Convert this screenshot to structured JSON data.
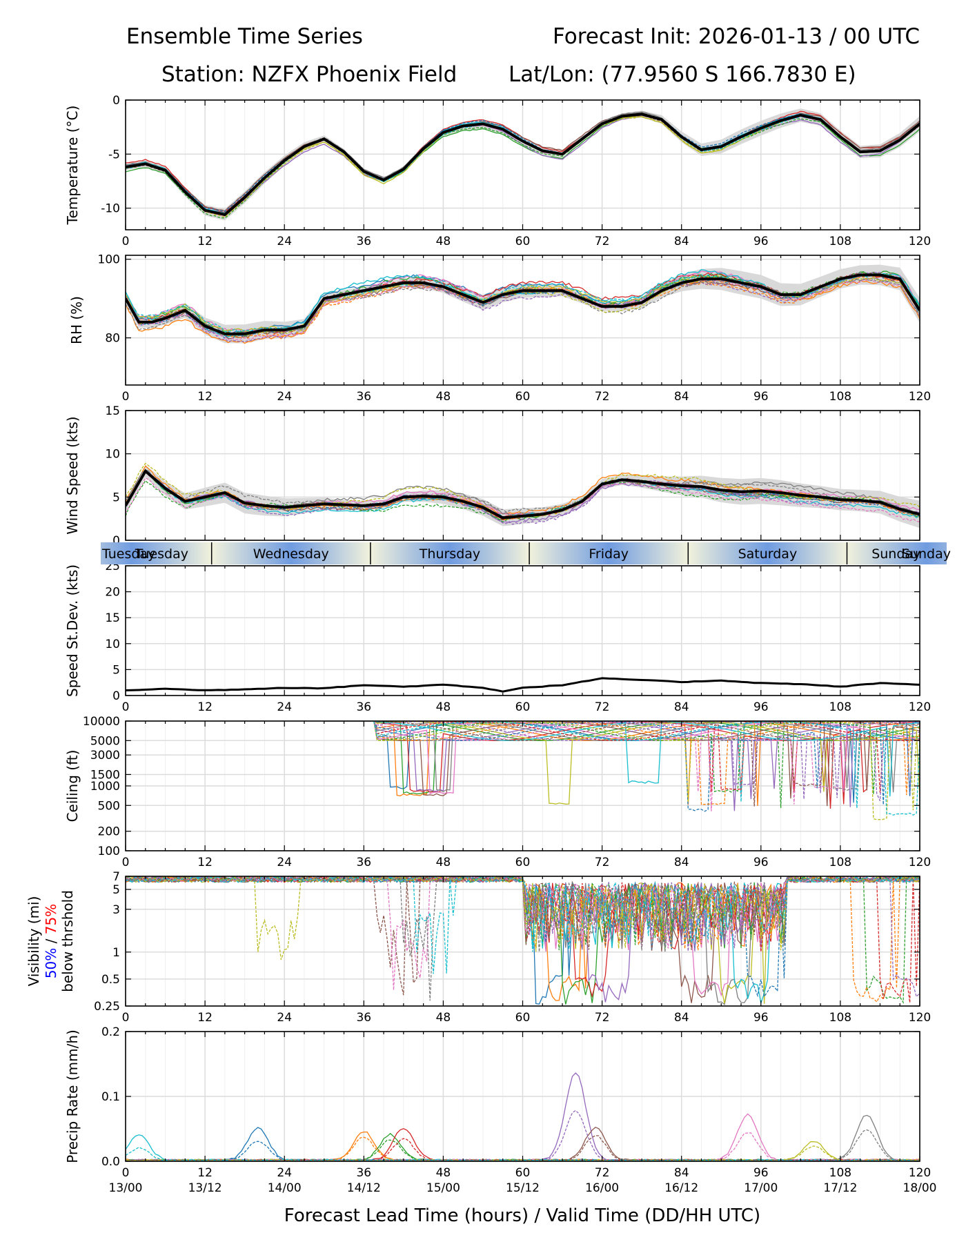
{
  "header": {
    "title_left": "Ensemble Time Series",
    "title_right": "Forecast Init: 2026-01-13 / 00 UTC",
    "station": "Station: NZFX Phoenix Field",
    "latlon": "Lat/Lon: (77.9560 S 166.7830 E)"
  },
  "xaxis_label": "Forecast Lead Time (hours) / Valid Time (DD/HH UTC)",
  "colors": {
    "members": [
      "#1f77b4",
      "#ff7f0e",
      "#2ca02c",
      "#d62728",
      "#9467bd",
      "#8c564b",
      "#e377c2",
      "#7f7f7f",
      "#bcbd22",
      "#17becf"
    ],
    "mean": "#000000",
    "spread": "#d9d9d9",
    "day_band_light": "#f2f2dc",
    "day_band_dark": "#6f9be0",
    "vis_label_blue": "#0000ff",
    "vis_label_red": "#ff0000"
  },
  "day_bands": {
    "boundaries": [
      13,
      37,
      61,
      85,
      109
    ],
    "labels": [
      "Tuesday",
      "Wednesday",
      "Thursday",
      "Friday",
      "Saturday",
      "Sunday"
    ]
  },
  "chart_data": [
    {
      "id": "temperature",
      "type": "line",
      "ylabel": "Temperature (°C)",
      "xlim": [
        0,
        120
      ],
      "ylim": [
        -12,
        0
      ],
      "xticks": [
        0,
        12,
        24,
        36,
        48,
        60,
        72,
        84,
        96,
        108,
        120
      ],
      "yticks": [
        0,
        -5,
        -10
      ],
      "ensemble_members": 20,
      "mean": {
        "x": [
          0,
          3,
          6,
          9,
          12,
          15,
          18,
          21,
          24,
          27,
          30,
          33,
          36,
          39,
          42,
          45,
          48,
          51,
          54,
          57,
          60,
          63,
          66,
          69,
          72,
          75,
          78,
          81,
          84,
          87,
          90,
          93,
          96,
          99,
          102,
          105,
          108,
          111,
          114,
          117,
          120
        ],
        "y": [
          -6.2,
          -5.9,
          -6.5,
          -8.5,
          -10.2,
          -10.6,
          -9.0,
          -7.2,
          -5.6,
          -4.3,
          -3.6,
          -4.8,
          -6.6,
          -7.4,
          -6.4,
          -4.5,
          -3.0,
          -2.4,
          -2.2,
          -2.7,
          -3.8,
          -4.7,
          -5.0,
          -3.6,
          -2.2,
          -1.5,
          -1.3,
          -1.8,
          -3.4,
          -4.6,
          -4.3,
          -3.4,
          -2.6,
          -1.9,
          -1.4,
          -1.8,
          -3.4,
          -4.8,
          -4.7,
          -3.7,
          -2.2
        ]
      }
    },
    {
      "id": "rh",
      "type": "line",
      "ylabel": "RH (%)",
      "xlim": [
        0,
        120
      ],
      "ylim": [
        68,
        101
      ],
      "xticks": [
        0,
        12,
        24,
        36,
        48,
        60,
        72,
        84,
        96,
        108,
        120
      ],
      "yticks": [
        100,
        80
      ],
      "ensemble_members": 20,
      "mean": {
        "x": [
          0,
          2,
          4,
          6,
          9,
          12,
          15,
          18,
          21,
          24,
          27,
          30,
          33,
          36,
          39,
          42,
          45,
          48,
          51,
          54,
          57,
          60,
          63,
          66,
          69,
          72,
          75,
          78,
          81,
          84,
          87,
          90,
          93,
          96,
          99,
          102,
          105,
          108,
          111,
          114,
          117,
          120
        ],
        "y": [
          90,
          84,
          84,
          85,
          87,
          83,
          81,
          81,
          82,
          82,
          83,
          90,
          91,
          92,
          93,
          94,
          94,
          93,
          91,
          89,
          91,
          92,
          92,
          92,
          90,
          88,
          88,
          89,
          92,
          94,
          95,
          95,
          94,
          93,
          91,
          91,
          93,
          95,
          96,
          96,
          95,
          87
        ]
      }
    },
    {
      "id": "wind_speed",
      "type": "line",
      "ylabel": "Wind Speed (kts)",
      "xlim": [
        0,
        120
      ],
      "ylim": [
        0,
        15
      ],
      "xticks": [
        0,
        12,
        24,
        36,
        48,
        60,
        72,
        84,
        96,
        108,
        120
      ],
      "yticks": [
        0,
        5,
        10,
        15
      ],
      "ensemble_members": 20,
      "mean": {
        "x": [
          0,
          3,
          6,
          9,
          12,
          15,
          18,
          21,
          24,
          27,
          30,
          33,
          36,
          39,
          42,
          45,
          48,
          51,
          54,
          57,
          60,
          63,
          66,
          69,
          72,
          75,
          78,
          81,
          84,
          87,
          90,
          93,
          96,
          99,
          102,
          105,
          108,
          111,
          114,
          117,
          120
        ],
        "y": [
          4,
          8,
          6,
          4.5,
          5,
          5.5,
          4.3,
          4,
          3.8,
          4,
          4.2,
          4.1,
          4,
          4.2,
          5,
          5.1,
          5,
          4.5,
          3.8,
          2.6,
          2.8,
          3,
          3.5,
          4.5,
          6.5,
          7,
          6.8,
          6.5,
          6.3,
          6.2,
          5.8,
          5.6,
          5.7,
          5.5,
          5.2,
          5,
          4.7,
          4.6,
          4.4,
          3.6,
          3
        ]
      }
    },
    {
      "id": "speed_stdev",
      "type": "line",
      "ylabel": "Speed St.Dev. (kts)",
      "xlim": [
        0,
        120
      ],
      "ylim": [
        0,
        25
      ],
      "xticks": [
        0,
        12,
        24,
        36,
        48,
        60,
        72,
        84,
        96,
        108,
        120
      ],
      "yticks": [
        0,
        5,
        10,
        15,
        20,
        25
      ],
      "series": [
        {
          "name": "st.dev",
          "x": [
            0,
            6,
            12,
            18,
            24,
            30,
            36,
            42,
            48,
            54,
            57,
            60,
            66,
            72,
            78,
            84,
            90,
            96,
            102,
            108,
            114,
            120
          ],
          "values": [
            1,
            1.3,
            1.0,
            1.2,
            1.5,
            1.4,
            2.0,
            1.7,
            2.1,
            1.5,
            0.8,
            1.5,
            2.0,
            3.3,
            3.0,
            2.6,
            2.9,
            2.4,
            2.2,
            1.7,
            2.4,
            2.1
          ]
        }
      ]
    },
    {
      "id": "ceiling",
      "type": "line",
      "ylabel": "Ceiling (ft)",
      "xlim": [
        0,
        120
      ],
      "ylim": [
        100,
        10000
      ],
      "yscale": "log",
      "xticks": [
        0,
        12,
        24,
        36,
        48,
        60,
        72,
        84,
        96,
        108,
        120
      ],
      "yticks": [
        10000,
        5000,
        3000,
        1500,
        1000,
        500,
        200,
        100
      ],
      "ensemble_members": 20
    },
    {
      "id": "visibility",
      "type": "line",
      "ylabel": "Visibility (mi)",
      "ylabel_extra": [
        "50%",
        " / ",
        "75%",
        "below thrshold"
      ],
      "xlim": [
        0,
        120
      ],
      "ylim": [
        0.25,
        7
      ],
      "yscale": "log",
      "xticks": [
        0,
        12,
        24,
        36,
        48,
        60,
        72,
        84,
        96,
        108,
        120
      ],
      "yticks": [
        7,
        5,
        3,
        1,
        0.5,
        0.25
      ],
      "ensemble_members": 20
    },
    {
      "id": "precip_rate",
      "type": "line",
      "ylabel": "Precip Rate (mm/h)",
      "xlim": [
        0,
        120
      ],
      "ylim": [
        0,
        0.2
      ],
      "xticks": [
        0,
        12,
        24,
        36,
        48,
        60,
        72,
        84,
        96,
        108,
        120
      ],
      "yticks": [
        0.0,
        0.1,
        0.2
      ],
      "valid_time_labels": [
        "13/00",
        "13/12",
        "14/00",
        "14/12",
        "15/00",
        "15/12",
        "16/00",
        "16/12",
        "17/00",
        "17/12",
        "18/00"
      ],
      "ensemble_members": 20
    }
  ]
}
